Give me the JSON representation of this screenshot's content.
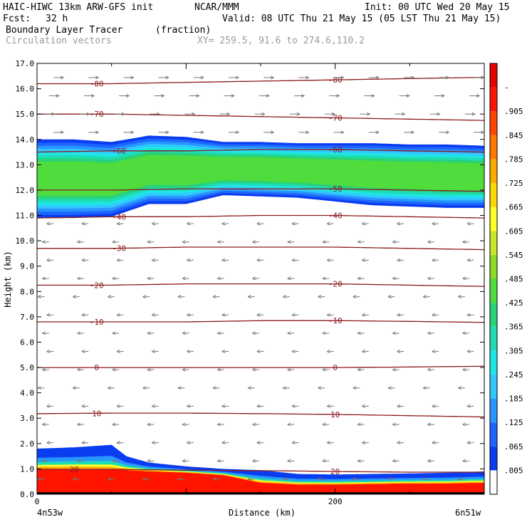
{
  "header": {
    "model": "HAIC-HIWC 13km ARW-GFS init",
    "org": "NCAR/MMM",
    "init": "Init: 00 UTC Wed 20 May 15",
    "fcst_label": "Fcst:",
    "fcst_value": "32 h",
    "valid": "Valid: 08 UTC Thu 21 May 15 (05 LST Thu 21 May 15)",
    "field_name": "Boundary Layer Tracer",
    "field_units": "(fraction)",
    "overlay_name": "Circulation vectors",
    "xy": "XY= 259.5, 91.6 to 274.6,110.2"
  },
  "axes": {
    "ylabel": "Height (km)",
    "xlabel": "Distance (km)",
    "left_endpoint": "4n53w",
    "right_endpoint": "6n51w"
  },
  "chart_data": {
    "type": "cross-section",
    "title": "Boundary Layer Tracer",
    "units": "(fraction)",
    "overlay": "Circulation vectors",
    "xlabel": "Distance (km)",
    "ylabel": "Height (km)",
    "ylim": [
      0,
      17
    ],
    "xlim": [
      0,
      300
    ],
    "y_ticks": [
      "0.0",
      "1.0",
      "2.0",
      "3.0",
      "4.0",
      "5.0",
      "6.0",
      "7.0",
      "8.0",
      "9.0",
      "10.0",
      "11.0",
      "12.0",
      "13.0",
      "14.0",
      "15.0",
      "16.0",
      "17.0"
    ],
    "x_ticks": [
      {
        "value": 0,
        "label": "0"
      },
      {
        "value": 200,
        "label": "200"
      }
    ],
    "colorbar": {
      "labels": [
        ".005",
        ".065",
        ".125",
        ".185",
        ".245",
        ".305",
        ".365",
        ".425",
        ".485",
        ".545",
        ".605",
        ".665",
        ".725",
        ".785",
        ".845",
        ".905",
        "-"
      ],
      "colors": [
        "#ffffff",
        "#0a3cf0",
        "#1e64ff",
        "#2896ff",
        "#32c8ff",
        "#1ee6e6",
        "#1edcb4",
        "#28d278",
        "#50dc3c",
        "#8cdc28",
        "#c8e628",
        "#ffff28",
        "#ffd700",
        "#ffaa00",
        "#ff7800",
        "#ff4600",
        "#ff1400",
        "#e60000"
      ]
    },
    "isotherms": [
      {
        "label": "20",
        "y": [
          0.98,
          0.98,
          0.95,
          0.93,
          0.9,
          0.87,
          0.87
        ],
        "label_x": [
          25,
          200
        ]
      },
      {
        "label": "10",
        "y": [
          3.18,
          3.2,
          3.2,
          3.18,
          3.15,
          3.1,
          3.05
        ],
        "label_x": [
          40,
          200
        ]
      },
      {
        "label": "0",
        "y": [
          5.0,
          5.0,
          5.0,
          5.0,
          5.0,
          5.02,
          5.05
        ],
        "label_x": [
          40,
          200
        ]
      },
      {
        "label": "-10",
        "y": [
          6.8,
          6.8,
          6.8,
          6.85,
          6.85,
          6.82,
          6.78
        ],
        "label_x": [
          40,
          200
        ]
      },
      {
        "label": "-20",
        "y": [
          8.25,
          8.25,
          8.3,
          8.3,
          8.3,
          8.25,
          8.2
        ],
        "label_x": [
          40,
          200
        ]
      },
      {
        "label": "-30",
        "y": [
          9.7,
          9.7,
          9.75,
          9.75,
          9.75,
          9.7,
          9.65
        ],
        "label_x": [
          55,
          null
        ]
      },
      {
        "label": "-40",
        "y": [
          10.9,
          10.95,
          10.95,
          11.0,
          11.0,
          10.95,
          10.9
        ],
        "label_x": [
          55,
          200
        ]
      },
      {
        "label": "-50",
        "y": [
          12.0,
          12.0,
          12.05,
          12.05,
          12.05,
          12.0,
          11.95
        ],
        "label_x": [
          null,
          200
        ]
      },
      {
        "label": "-60",
        "y": [
          13.5,
          13.55,
          13.55,
          13.6,
          13.6,
          13.55,
          13.5
        ],
        "label_x": [
          55,
          200
        ]
      },
      {
        "label": "-70",
        "y": [
          15.0,
          15.0,
          14.95,
          14.9,
          14.85,
          14.8,
          14.75
        ],
        "label_x": [
          40,
          200
        ]
      },
      {
        "label": "-80",
        "y": [
          16.2,
          16.2,
          16.25,
          16.3,
          16.35,
          16.4,
          16.45
        ],
        "label_x": [
          40,
          200
        ]
      }
    ],
    "tracer_upper_band": {
      "x": [
        0,
        25,
        50,
        75,
        100,
        125,
        150,
        175,
        200,
        225,
        250,
        275,
        300
      ],
      "bottom": [
        10.9,
        10.9,
        10.95,
        11.45,
        11.45,
        11.8,
        11.75,
        11.7,
        11.55,
        11.4,
        11.35,
        11.3,
        11.3
      ],
      "top": [
        14.0,
        14.0,
        13.9,
        14.15,
        14.1,
        13.9,
        13.9,
        13.85,
        13.85,
        13.85,
        13.8,
        13.8,
        13.75
      ]
    },
    "tracer_boundary_layer": {
      "x": [
        0,
        25,
        50,
        60,
        75,
        100,
        125,
        150,
        175,
        200,
        225,
        250,
        275,
        300
      ],
      "top": [
        1.8,
        1.85,
        1.95,
        1.5,
        1.25,
        1.1,
        1.0,
        0.95,
        0.8,
        0.78,
        0.8,
        0.82,
        0.85,
        0.9
      ],
      "red_top": [
        1.0,
        1.0,
        0.98,
        0.95,
        0.9,
        0.85,
        0.75,
        0.45,
        0.38,
        0.38,
        0.4,
        0.42,
        0.42,
        0.45
      ]
    }
  }
}
